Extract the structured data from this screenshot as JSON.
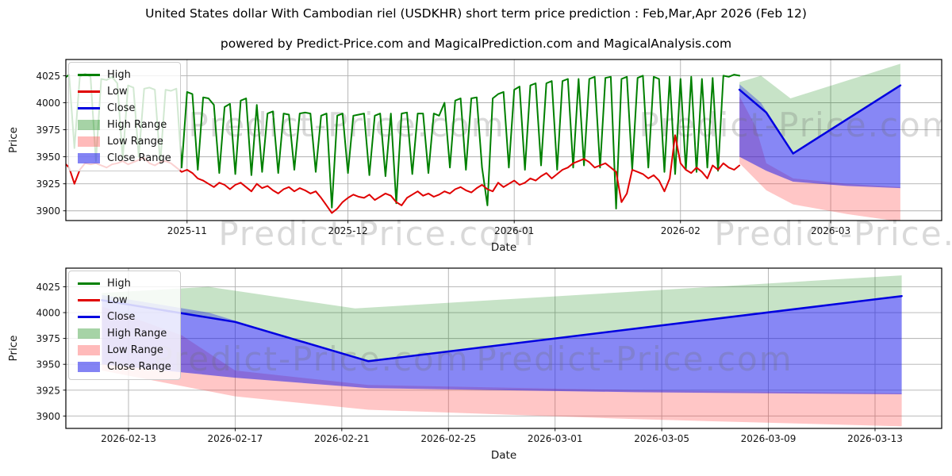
{
  "chart_data": {
    "type": "line",
    "title": "United States dollar With Cambodian riel (USDKHR) short term price prediction : Feb,Mar,Apr 2026 (Feb 12)",
    "subtitle": "powered by Predict-Price.com and MagicalPrediction.com and MagicalAnalysis.com",
    "watermark_text": "Predict-Price.com",
    "legend": [
      {
        "label": "High",
        "color": "#008000",
        "type": "line"
      },
      {
        "label": "Low",
        "color": "#e00000",
        "type": "line"
      },
      {
        "label": "Close",
        "color": "#0000e0",
        "type": "line"
      },
      {
        "label": "High Range",
        "color": "rgba(0,128,0,0.35)",
        "type": "patch"
      },
      {
        "label": "Low Range",
        "color": "rgba(255,45,45,0.33)",
        "type": "patch"
      },
      {
        "label": "Close Range",
        "color": "rgba(30,30,235,0.55)",
        "type": "patch"
      }
    ],
    "series_hist": {
      "high": [
        4022,
        4026,
        3958,
        4024,
        4027,
        4024,
        3946,
        4022,
        4021,
        4024,
        4018,
        3948,
        4016,
        4014,
        3950,
        4013,
        4014,
        4012,
        3944,
        4012,
        4011,
        4013,
        3940,
        4010,
        4008,
        3938,
        4005,
        4004,
        3998,
        3935,
        3996,
        3999,
        3934,
        4002,
        4004,
        3933,
        3998,
        3936,
        3990,
        3992,
        3935,
        3990,
        3989,
        3938,
        3990,
        3991,
        3990,
        3936,
        3988,
        3990,
        3903,
        3988,
        3990,
        3935,
        3988,
        3989,
        3990,
        3933,
        3988,
        3990,
        3932,
        3990,
        3907,
        3990,
        3991,
        3934,
        3990,
        3990,
        3935,
        3990,
        3988,
        4000,
        3940,
        4002,
        4004,
        3938,
        4004,
        4005,
        3940,
        3905,
        4004,
        4008,
        4010,
        3940,
        4012,
        4015,
        3938,
        4016,
        4018,
        3942,
        4018,
        4020,
        3938,
        4020,
        4022,
        3940,
        4022,
        3942,
        4022,
        4024,
        3940,
        4023,
        4024,
        3902,
        4022,
        4024,
        3938,
        4023,
        4025,
        3940,
        4024,
        4022,
        3936,
        4024,
        3934,
        4022,
        3938,
        4024,
        3936,
        4022,
        3940,
        4023,
        3937,
        4025,
        4024,
        4026,
        4025
      ],
      "low": [
        3945,
        3940,
        3925,
        3938,
        3944,
        3943,
        3944,
        3942,
        3940,
        3943,
        3944,
        3946,
        3943,
        3945,
        3947,
        3949,
        3944,
        3942,
        3945,
        3946,
        3944,
        3940,
        3936,
        3938,
        3935,
        3930,
        3928,
        3925,
        3922,
        3926,
        3924,
        3920,
        3924,
        3926,
        3922,
        3918,
        3925,
        3921,
        3923,
        3919,
        3916,
        3920,
        3922,
        3918,
        3921,
        3919,
        3916,
        3918,
        3912,
        3905,
        3898,
        3902,
        3908,
        3912,
        3915,
        3913,
        3912,
        3915,
        3910,
        3913,
        3916,
        3914,
        3908,
        3905,
        3912,
        3915,
        3918,
        3914,
        3916,
        3913,
        3915,
        3918,
        3916,
        3920,
        3922,
        3919,
        3917,
        3921,
        3924,
        3920,
        3918,
        3926,
        3922,
        3925,
        3928,
        3924,
        3926,
        3930,
        3928,
        3932,
        3935,
        3930,
        3934,
        3938,
        3940,
        3944,
        3946,
        3948,
        3945,
        3940,
        3942,
        3944,
        3940,
        3936,
        3908,
        3916,
        3938,
        3936,
        3934,
        3930,
        3933,
        3928,
        3918,
        3930,
        3970,
        3944,
        3938,
        3935,
        3940,
        3936,
        3930,
        3942,
        3938,
        3944,
        3940,
        3938,
        3942
      ]
    },
    "forecast": {
      "close": [
        [
          126,
          4012
        ],
        [
          131,
          3991
        ],
        [
          136,
          3953
        ],
        [
          156,
          4016
        ]
      ],
      "close_head": [
        [
          126,
          4012
        ],
        [
          131,
          3991
        ],
        [
          136,
          3953
        ]
      ],
      "high_upper": [
        [
          126,
          4019
        ],
        [
          130,
          4025
        ],
        [
          135.5,
          4004
        ],
        [
          156,
          4036
        ]
      ],
      "close_upper": [
        [
          126,
          4017
        ],
        [
          130,
          4000
        ],
        [
          136,
          3953
        ]
      ],
      "close_lower": [
        [
          126,
          3950
        ],
        [
          131,
          3937
        ],
        [
          136,
          3927
        ],
        [
          146,
          3923
        ],
        [
          156,
          3921
        ]
      ],
      "low_upper": [
        [
          126,
          4006
        ],
        [
          129,
          3978
        ],
        [
          131,
          3944
        ],
        [
          136,
          3930
        ],
        [
          146,
          3925
        ],
        [
          156,
          3922
        ]
      ],
      "low_lower": [
        [
          126,
          3944
        ],
        [
          131,
          3919
        ],
        [
          136,
          3906
        ],
        [
          146,
          3897
        ],
        [
          156,
          3890
        ]
      ]
    },
    "charts": [
      {
        "name": "price-history-forecast",
        "xlabel": "Date",
        "ylabel": "Price",
        "plot": [
          83,
          75,
          1104,
          203
        ],
        "x_range": [
          0.4,
          163.7
        ],
        "y_range": [
          3891,
          4040
        ],
        "y_ticks": [
          3900,
          3925,
          3950,
          3975,
          4000,
          4025
        ],
        "x_ticks": [
          {
            "day": 23,
            "label": "2025-11"
          },
          {
            "day": 53,
            "label": "2025-12"
          },
          {
            "day": 84,
            "label": "2026-01"
          },
          {
            "day": 115,
            "label": "2026-02"
          },
          {
            "day": 143,
            "label": "2026-03"
          }
        ],
        "bands": [
          {
            "name": "high-range-band",
            "upper": "high_upper",
            "lower": "close",
            "color": "rgba(0,128,0,0.22)"
          },
          {
            "name": "low-range-band",
            "upper": "low_upper",
            "lower": "low_lower",
            "color": "rgba(255,45,45,0.27)"
          },
          {
            "name": "close-range-band",
            "upper": "close",
            "lower": "close_lower",
            "color": "rgba(25,25,235,0.52)"
          },
          {
            "name": "close-range-upper-wedge",
            "upper": "close_upper",
            "lower": "close_head",
            "color": "rgba(25,25,235,0.35)"
          }
        ],
        "lines": [
          {
            "name": "high-line",
            "color": "#008000",
            "width": 2,
            "values": "high"
          },
          {
            "name": "low-line",
            "color": "#e00000",
            "width": 2,
            "values": "low"
          },
          {
            "name": "close-line",
            "color": "#0000e0",
            "width": 2.5,
            "ref": "close"
          }
        ],
        "watermarks": [
          [
            437,
            172
          ],
          [
            1005,
            172
          ]
        ],
        "fig_watermarks": [
          [
            475,
            309
          ],
          [
            1100,
            309
          ]
        ]
      },
      {
        "name": "forecast-detail",
        "xlabel": "Date",
        "ylabel": "Price",
        "plot": [
          83,
          338,
          1104,
          202
        ],
        "x_range": [
          124.65,
          157.5
        ],
        "y_range": [
          3888,
          4043
        ],
        "y_ticks": [
          3900,
          3925,
          3950,
          3975,
          4000,
          4025
        ],
        "x_ticks": [
          {
            "day": 127,
            "label": "2026-02-13"
          },
          {
            "day": 131,
            "label": "2026-02-17"
          },
          {
            "day": 135,
            "label": "2026-02-21"
          },
          {
            "day": 139,
            "label": "2026-02-25"
          },
          {
            "day": 143,
            "label": "2026-03-01"
          },
          {
            "day": 147,
            "label": "2026-03-05"
          },
          {
            "day": 151,
            "label": "2026-03-09"
          },
          {
            "day": 155,
            "label": "2026-03-13"
          }
        ],
        "bands": [
          {
            "name": "high-range-band",
            "upper": "high_upper",
            "lower": "close",
            "color": "rgba(0,128,0,0.22)"
          },
          {
            "name": "low-range-band",
            "upper": "low_upper",
            "lower": "low_lower",
            "color": "rgba(255,45,45,0.27)"
          },
          {
            "name": "close-range-band",
            "upper": "close",
            "lower": "close_lower",
            "color": "rgba(25,25,235,0.52)"
          },
          {
            "name": "close-range-upper-wedge",
            "upper": "close_upper",
            "lower": "close_head",
            "color": "rgba(25,25,235,0.35)"
          }
        ],
        "lines": [
          {
            "name": "close-line",
            "color": "#0000e0",
            "width": 2.5,
            "ref": "close"
          }
        ],
        "watermarks": [
          [
            392,
            467
          ],
          [
            800,
            467
          ]
        ],
        "fig_watermarks": []
      }
    ]
  }
}
